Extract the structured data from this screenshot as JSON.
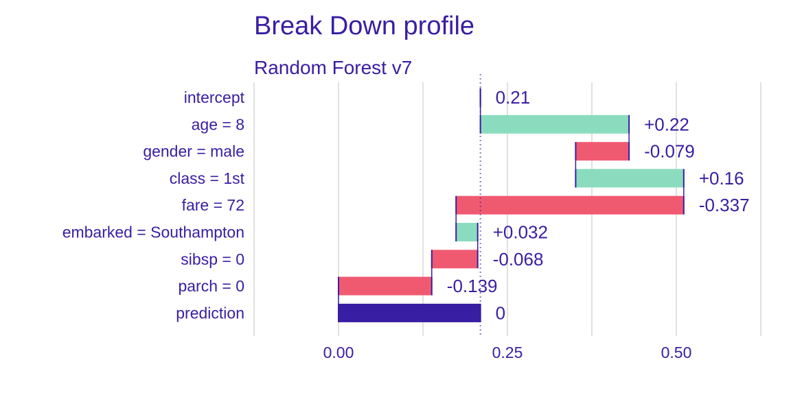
{
  "chart_data": {
    "type": "bar",
    "subtype": "waterfall",
    "title": "Break Down profile",
    "subtitle": "Random Forest v7",
    "xlabel": "",
    "ylabel": "",
    "xlim": [
      -0.125,
      0.625
    ],
    "xticks": [
      0.0,
      0.25,
      0.5
    ],
    "xtick_labels": [
      "0.00",
      "0.25",
      "0.50"
    ],
    "grid": true,
    "reference_line": 0.21,
    "colors": {
      "text": "#371ea3",
      "positive": "#8bdcbe",
      "negative": "#f05a71",
      "prediction": "#371ea3",
      "grid": "#e0e0e0",
      "connector": "#371ea3"
    },
    "bars": [
      {
        "label": "intercept",
        "start": 0.21,
        "end": 0.21,
        "display": "0.21",
        "kind": "intercept"
      },
      {
        "label": "age = 8",
        "start": 0.21,
        "end": 0.43,
        "display": "+0.22",
        "kind": "positive"
      },
      {
        "label": "gender = male",
        "start": 0.43,
        "end": 0.351,
        "display": "-0.079",
        "kind": "negative"
      },
      {
        "label": "class = 1st",
        "start": 0.351,
        "end": 0.511,
        "display": "+0.16",
        "kind": "positive"
      },
      {
        "label": "fare = 72",
        "start": 0.511,
        "end": 0.174,
        "display": "-0.337",
        "kind": "negative"
      },
      {
        "label": "embarked = Southampton",
        "start": 0.174,
        "end": 0.206,
        "display": "+0.032",
        "kind": "positive"
      },
      {
        "label": "sibsp = 0",
        "start": 0.206,
        "end": 0.138,
        "display": "-0.068",
        "kind": "negative"
      },
      {
        "label": "parch = 0",
        "start": 0.138,
        "end": 0.0,
        "display": "-0.139",
        "kind": "negative"
      },
      {
        "label": "prediction",
        "start": 0.0,
        "end": 0.21,
        "display": "0",
        "kind": "prediction"
      }
    ]
  }
}
